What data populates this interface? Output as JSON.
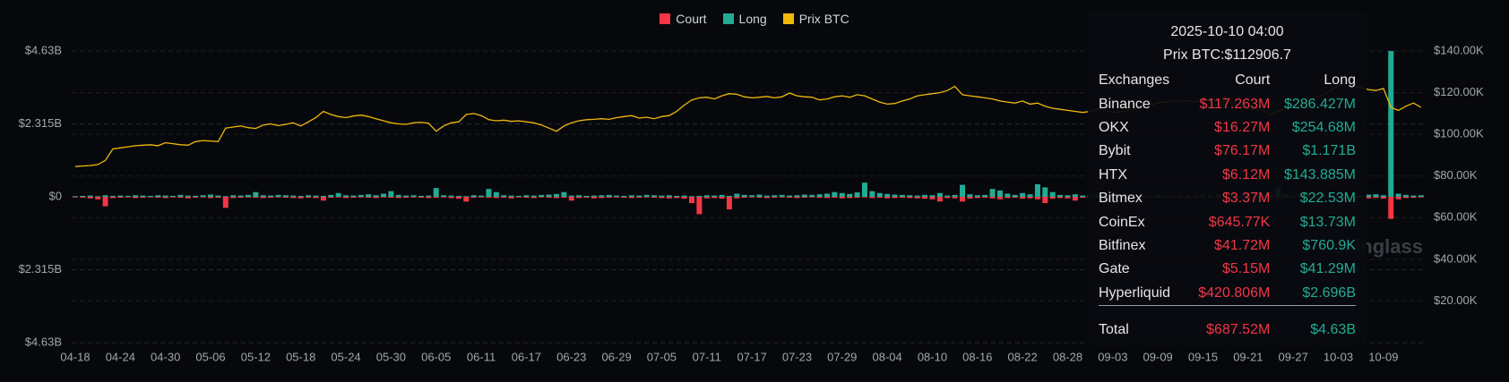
{
  "chart_data": {
    "type": "bar",
    "categories": [
      "04-18",
      null,
      null,
      null,
      null,
      null,
      "04-24",
      null,
      null,
      null,
      null,
      null,
      "04-30",
      null,
      null,
      null,
      null,
      null,
      "05-06",
      null,
      null,
      null,
      null,
      null,
      "05-12",
      null,
      null,
      null,
      null,
      null,
      "05-18",
      null,
      null,
      null,
      null,
      null,
      "05-24",
      null,
      null,
      null,
      null,
      null,
      "05-30",
      null,
      null,
      null,
      null,
      null,
      "06-05",
      null,
      null,
      null,
      null,
      null,
      "06-11",
      null,
      null,
      null,
      null,
      null,
      "06-17",
      null,
      null,
      null,
      null,
      null,
      "06-23",
      null,
      null,
      null,
      null,
      null,
      "06-29",
      null,
      null,
      null,
      null,
      null,
      "07-05",
      null,
      null,
      null,
      null,
      null,
      "07-11",
      null,
      null,
      null,
      null,
      null,
      "07-17",
      null,
      null,
      null,
      null,
      null,
      "07-23",
      null,
      null,
      null,
      null,
      null,
      "07-29",
      null,
      null,
      null,
      null,
      null,
      "08-04",
      null,
      null,
      null,
      null,
      null,
      "08-10",
      null,
      null,
      null,
      null,
      null,
      "08-16",
      null,
      null,
      null,
      null,
      null,
      "08-22",
      null,
      null,
      null,
      null,
      null,
      "08-28",
      null,
      null,
      null,
      null,
      null,
      "09-03",
      null,
      null,
      null,
      null,
      null,
      "09-09",
      null,
      null,
      null,
      null,
      null,
      "09-15",
      null,
      null,
      null,
      null,
      null,
      "09-21",
      null,
      null,
      null,
      null,
      null,
      "09-27",
      null,
      null,
      null,
      null,
      null,
      "10-03",
      null,
      null,
      null,
      null,
      null,
      "10-09",
      null,
      null,
      null,
      null,
      null
    ],
    "series": [
      {
        "name": "Court",
        "color": "#f23645",
        "values": [
          -0.02,
          -0.03,
          -0.05,
          -0.08,
          -0.3,
          -0.04,
          -0.03,
          -0.02,
          -0.04,
          -0.03,
          -0.02,
          -0.03,
          -0.04,
          -0.02,
          -0.03,
          -0.05,
          -0.03,
          -0.02,
          -0.04,
          -0.03,
          -0.35,
          -0.04,
          -0.03,
          -0.02,
          -0.03,
          -0.04,
          -0.03,
          -0.02,
          -0.03,
          -0.04,
          -0.05,
          -0.03,
          -0.04,
          -0.12,
          -0.03,
          -0.02,
          -0.04,
          -0.03,
          -0.02,
          -0.03,
          -0.04,
          -0.02,
          -0.03,
          -0.04,
          -0.03,
          -0.02,
          -0.03,
          -0.04,
          -0.03,
          -0.02,
          -0.04,
          -0.06,
          -0.15,
          -0.03,
          -0.02,
          -0.03,
          -0.04,
          -0.03,
          -0.05,
          -0.02,
          -0.03,
          -0.04,
          -0.02,
          -0.03,
          -0.04,
          -0.03,
          -0.12,
          -0.04,
          -0.03,
          -0.05,
          -0.04,
          -0.03,
          -0.02,
          -0.03,
          -0.04,
          -0.03,
          -0.02,
          -0.03,
          -0.04,
          -0.05,
          -0.04,
          -0.06,
          -0.2,
          -0.55,
          -0.05,
          -0.04,
          -0.06,
          -0.4,
          -0.05,
          -0.03,
          -0.02,
          -0.03,
          -0.04,
          -0.03,
          -0.02,
          -0.03,
          -0.04,
          -0.03,
          -0.02,
          -0.03,
          -0.04,
          -0.03,
          -0.05,
          -0.04,
          -0.03,
          -0.02,
          -0.04,
          -0.03,
          -0.05,
          -0.04,
          -0.03,
          -0.04,
          -0.05,
          -0.06,
          -0.08,
          -0.15,
          -0.04,
          -0.05,
          -0.15,
          -0.06,
          -0.04,
          -0.03,
          -0.05,
          -0.08,
          -0.04,
          -0.03,
          -0.06,
          -0.05,
          -0.08,
          -0.2,
          -0.06,
          -0.04,
          -0.05,
          -0.12,
          -0.03,
          -0.02,
          -0.03,
          -0.04,
          -0.03,
          -0.02,
          -0.03,
          -0.04,
          -0.02,
          -0.03,
          -0.04,
          -0.03,
          -0.02,
          -0.03,
          -0.04,
          -0.03,
          -0.02,
          -0.03,
          -0.04,
          -0.03,
          -0.05,
          -0.04,
          -0.03,
          -0.02,
          -0.04,
          -0.03,
          -0.05,
          -0.04,
          -0.03,
          -0.04,
          -0.02,
          -0.03,
          -0.04,
          -0.03,
          -0.05,
          -0.04,
          -0.03,
          -0.04,
          -0.05,
          -0.03,
          -0.06,
          -0.7,
          -0.08,
          -0.04,
          -0.03,
          -0.02
        ]
      },
      {
        "name": "Long",
        "color": "#22ab94",
        "values": [
          0.02,
          0.03,
          0.04,
          0.02,
          0.05,
          0.03,
          0.04,
          0.03,
          0.05,
          0.04,
          0.03,
          0.05,
          0.04,
          0.03,
          0.06,
          0.04,
          0.03,
          0.05,
          0.07,
          0.04,
          0.02,
          0.05,
          0.04,
          0.06,
          0.15,
          0.05,
          0.04,
          0.06,
          0.05,
          0.04,
          0.03,
          0.05,
          0.04,
          0.03,
          0.06,
          0.12,
          0.05,
          0.04,
          0.06,
          0.08,
          0.05,
          0.1,
          0.18,
          0.06,
          0.04,
          0.05,
          0.03,
          0.04,
          0.28,
          0.05,
          0.04,
          0.03,
          0.02,
          0.05,
          0.04,
          0.25,
          0.15,
          0.05,
          0.04,
          0.03,
          0.05,
          0.04,
          0.06,
          0.07,
          0.09,
          0.15,
          0.04,
          0.05,
          0.03,
          0.04,
          0.05,
          0.06,
          0.04,
          0.03,
          0.05,
          0.04,
          0.06,
          0.05,
          0.04,
          0.05,
          0.03,
          0.04,
          0.02,
          0.03,
          0.05,
          0.04,
          0.06,
          0.03,
          0.1,
          0.06,
          0.05,
          0.07,
          0.04,
          0.05,
          0.06,
          0.04,
          0.05,
          0.07,
          0.06,
          0.08,
          0.1,
          0.15,
          0.12,
          0.09,
          0.14,
          0.45,
          0.18,
          0.12,
          0.09,
          0.07,
          0.06,
          0.05,
          0.04,
          0.06,
          0.05,
          0.12,
          0.04,
          0.06,
          0.38,
          0.08,
          0.05,
          0.06,
          0.25,
          0.2,
          0.1,
          0.06,
          0.12,
          0.08,
          0.4,
          0.3,
          0.15,
          0.06,
          0.05,
          0.08,
          0.04,
          0.05,
          0.06,
          0.04,
          0.05,
          0.06,
          0.04,
          0.03,
          0.05,
          0.04,
          0.06,
          0.05,
          0.04,
          0.03,
          0.05,
          0.04,
          0.06,
          0.05,
          0.08,
          0.06,
          0.04,
          0.05,
          0.1,
          0.12,
          0.08,
          0.06,
          0.3,
          0.07,
          0.05,
          0.06,
          0.04,
          0.05,
          0.06,
          0.08,
          0.05,
          0.04,
          0.06,
          0.05,
          0.07,
          0.08,
          0.05,
          4.63,
          0.1,
          0.06,
          0.04,
          0.05
        ]
      },
      {
        "name": "Prix BTC",
        "color": "#f0b90b",
        "type": "line",
        "axis": "y2",
        "values": [
          84500,
          84800,
          85000,
          85500,
          87500,
          93000,
          93500,
          94000,
          94500,
          94800,
          95000,
          94500,
          96000,
          95500,
          95000,
          94800,
          96500,
          97000,
          96800,
          96500,
          103000,
          103500,
          104000,
          103200,
          102800,
          104500,
          105000,
          104200,
          104800,
          105500,
          104000,
          106000,
          108000,
          111000,
          109500,
          108500,
          108000,
          108800,
          109200,
          108500,
          107500,
          106500,
          105500,
          105000,
          104800,
          105500,
          105800,
          105300,
          101500,
          104000,
          105500,
          106000,
          109500,
          110000,
          109000,
          107000,
          106500,
          106800,
          106200,
          106500,
          106000,
          105500,
          104500,
          103000,
          101500,
          104000,
          105500,
          106500,
          107000,
          107200,
          107500,
          107200,
          108000,
          108500,
          109000,
          107800,
          108200,
          107500,
          108500,
          109000,
          111000,
          114000,
          116500,
          117500,
          117800,
          117000,
          118500,
          119500,
          119200,
          118000,
          117500,
          117800,
          118200,
          117500,
          118000,
          119800,
          118500,
          118000,
          117800,
          116500,
          117000,
          118000,
          118500,
          117800,
          119000,
          118500,
          117000,
          115500,
          114500,
          114800,
          116000,
          117000,
          118500,
          119000,
          119500,
          120000,
          121000,
          123000,
          119000,
          118500,
          118000,
          117500,
          117000,
          116000,
          115500,
          115000,
          116000,
          114500,
          115000,
          113500,
          112500,
          112000,
          111500,
          111000,
          110500,
          111000,
          112000,
          111500,
          110500,
          110800,
          111500,
          112000,
          113000,
          114000,
          115000,
          115500,
          116000,
          115800,
          116200,
          115500,
          116500,
          117000,
          116000,
          115800,
          115500,
          113000,
          112500,
          112000,
          111500,
          109500,
          111000,
          112500,
          113500,
          114000,
          116000,
          118000,
          119000,
          121000,
          123500,
          124500,
          123000,
          122500,
          121500,
          121000,
          122000,
          112906.7,
          111500,
          113500,
          115000,
          113000
        ]
      }
    ],
    "ylim": [
      -4.63,
      4.63
    ],
    "yticks": [
      {
        "value": 4.63,
        "label": "$4.63B"
      },
      {
        "value": 2.315,
        "label": "$2.315B"
      },
      {
        "value": 0,
        "label": "$0"
      },
      {
        "value": -2.315,
        "label": "$2.315B"
      },
      {
        "value": -4.63,
        "label": "$4.63B"
      }
    ],
    "y2lim": [
      0,
      140000
    ],
    "y2ticks": [
      {
        "value": 140000,
        "label": "$140.00K"
      },
      {
        "value": 120000,
        "label": "$120.00K"
      },
      {
        "value": 100000,
        "label": "$100.00K"
      },
      {
        "value": 80000,
        "label": "$80.00K"
      },
      {
        "value": 60000,
        "label": "$60.00K"
      },
      {
        "value": 40000,
        "label": "$40.00K"
      },
      {
        "value": 20000,
        "label": "$20.00K"
      }
    ],
    "grid": true,
    "legend": "top",
    "watermark": "coinglass"
  },
  "tooltip": {
    "title": "2025-10-10 04:00",
    "price": "Prix BTC:$112906.7",
    "header": [
      "Exchanges",
      "Court",
      "Long"
    ],
    "rows": [
      [
        "Binance",
        "$117.263M",
        "$286.427M"
      ],
      [
        "OKX",
        "$16.27M",
        "$254.68M"
      ],
      [
        "Bybit",
        "$76.17M",
        "$1.171B"
      ],
      [
        "HTX",
        "$6.12M",
        "$143.885M"
      ],
      [
        "Bitmex",
        "$3.37M",
        "$22.53M"
      ],
      [
        "CoinEx",
        "$645.77K",
        "$13.73M"
      ],
      [
        "Bitfinex",
        "$41.72M",
        "$760.9K"
      ],
      [
        "Gate",
        "$5.15M",
        "$41.29M"
      ],
      [
        "Hyperliquid",
        "$420.806M",
        "$2.696B"
      ]
    ],
    "total": [
      "Total",
      "$687.52M",
      "$4.63B"
    ]
  }
}
